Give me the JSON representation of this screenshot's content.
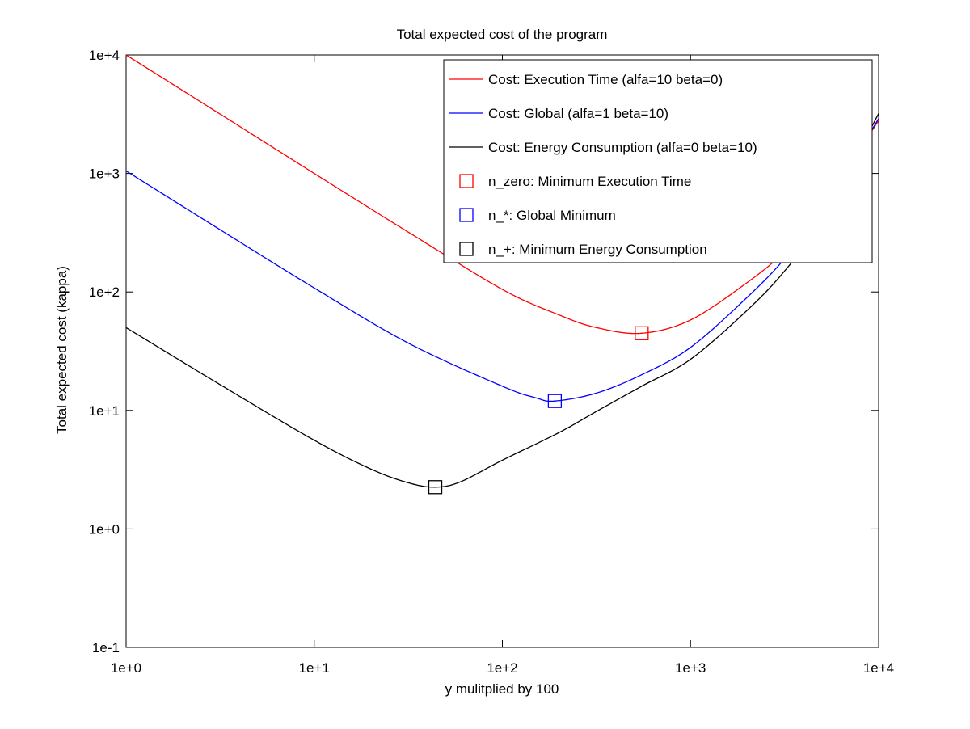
{
  "chart_data": {
    "type": "line",
    "title": "Total expected cost of the program",
    "xlabel": "y mulitplied by 100",
    "ylabel": "Total expected cost (kappa)",
    "xscale": "log",
    "yscale": "log",
    "xlim": [
      1,
      10000
    ],
    "ylim": [
      0.1,
      10000
    ],
    "xticks": [
      {
        "value": 1,
        "label": "1e+0"
      },
      {
        "value": 10,
        "label": "1e+1"
      },
      {
        "value": 100,
        "label": "1e+2"
      },
      {
        "value": 1000,
        "label": "1e+3"
      },
      {
        "value": 10000,
        "label": "1e+4"
      }
    ],
    "yticks": [
      {
        "value": 0.1,
        "label": "1e-1"
      },
      {
        "value": 1,
        "label": "1e+0"
      },
      {
        "value": 10,
        "label": "1e+1"
      },
      {
        "value": 100,
        "label": "1e+2"
      },
      {
        "value": 1000,
        "label": "1e+3"
      },
      {
        "value": 10000,
        "label": "1e+4"
      }
    ],
    "grid": false,
    "legend_position": "top-right",
    "series": [
      {
        "name": "Cost: Execution Time (alfa=10 beta=0)",
        "color": "#ff0000",
        "points": [
          [
            1,
            10000
          ],
          [
            3.16,
            3170
          ],
          [
            10,
            1000
          ],
          [
            31.6,
            320
          ],
          [
            100,
            105
          ],
          [
            200,
            64
          ],
          [
            316,
            50
          ],
          [
            550,
            44.8
          ],
          [
            1000,
            58
          ],
          [
            2000,
            120
          ],
          [
            3160,
            220
          ],
          [
            5000,
            520
          ],
          [
            10000,
            2800
          ]
        ]
      },
      {
        "name": "Cost: Global (alfa=1 beta=10)",
        "color": "#0000ff",
        "points": [
          [
            1,
            1050
          ],
          [
            3.16,
            335
          ],
          [
            10,
            108
          ],
          [
            31.6,
            37
          ],
          [
            100,
            16
          ],
          [
            150,
            12.8
          ],
          [
            190,
            12
          ],
          [
            316,
            14
          ],
          [
            550,
            20
          ],
          [
            1000,
            34
          ],
          [
            2000,
            90
          ],
          [
            3160,
            190
          ],
          [
            5000,
            480
          ],
          [
            10000,
            2900
          ]
        ]
      },
      {
        "name": "Cost: Energy Consumption (alfa=0 beta=10)",
        "color": "#000000",
        "points": [
          [
            1,
            50
          ],
          [
            3.16,
            16.5
          ],
          [
            10,
            5.6
          ],
          [
            20,
            3.2
          ],
          [
            31.6,
            2.45
          ],
          [
            44,
            2.25
          ],
          [
            60,
            2.5
          ],
          [
            100,
            3.8
          ],
          [
            200,
            6.5
          ],
          [
            316,
            9.8
          ],
          [
            550,
            16
          ],
          [
            1000,
            27
          ],
          [
            2000,
            70
          ],
          [
            3160,
            150
          ],
          [
            5000,
            400
          ],
          [
            10000,
            3200
          ]
        ]
      }
    ],
    "markers": [
      {
        "name": "n_zero: Minimum Execution Time",
        "color": "#ff0000",
        "x": 550,
        "y": 44.8
      },
      {
        "name": "n_*: Global Minimum",
        "color": "#0000ff",
        "x": 190,
        "y": 12
      },
      {
        "name": "n_+: Minimum Energy Consumption",
        "color": "#000000",
        "x": 44,
        "y": 2.25
      }
    ]
  }
}
